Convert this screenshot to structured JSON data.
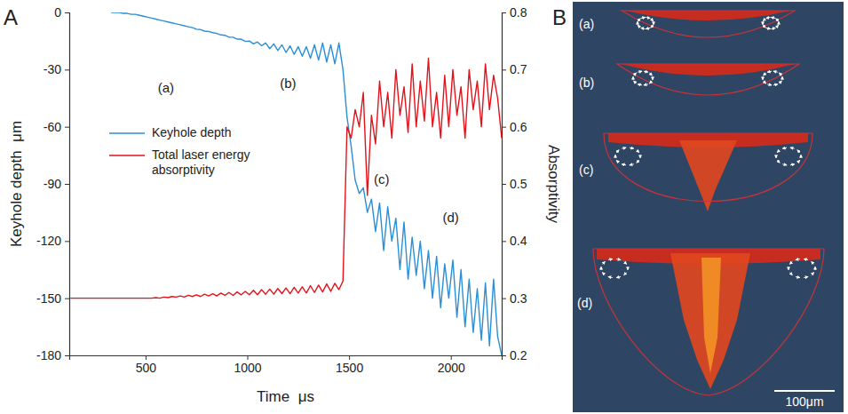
{
  "chart_data": {
    "type": "line",
    "panel_label": "A",
    "x_label": "Time  μs",
    "y_label": "Keyhole depth  μm",
    "y2_label": "Absorptivity",
    "xlim": [
      125,
      2250
    ],
    "xticks": [
      500,
      1000,
      1500,
      2000
    ],
    "ylim": [
      -180,
      0
    ],
    "yticks": [
      0,
      -30,
      -60,
      -90,
      -120,
      -150,
      -180
    ],
    "y2lim": [
      0.2,
      0.8
    ],
    "y2ticks": [
      0.2,
      0.3,
      0.4,
      0.5,
      0.6,
      0.7,
      0.8
    ],
    "grid": false,
    "legend": "left",
    "x": [
      130,
      150,
      170,
      190,
      210,
      230,
      250,
      270,
      290,
      310,
      330,
      350,
      370,
      390,
      410,
      430,
      450,
      470,
      490,
      510,
      530,
      550,
      570,
      590,
      610,
      630,
      650,
      670,
      690,
      710,
      730,
      750,
      770,
      790,
      810,
      830,
      850,
      870,
      890,
      910,
      930,
      950,
      970,
      990,
      1010,
      1030,
      1050,
      1070,
      1090,
      1110,
      1130,
      1150,
      1170,
      1190,
      1210,
      1230,
      1250,
      1270,
      1290,
      1310,
      1330,
      1350,
      1370,
      1390,
      1410,
      1430,
      1450,
      1470,
      1490,
      1510,
      1530,
      1550,
      1570,
      1590,
      1610,
      1630,
      1650,
      1670,
      1690,
      1710,
      1730,
      1750,
      1770,
      1790,
      1810,
      1830,
      1850,
      1870,
      1890,
      1910,
      1930,
      1950,
      1970,
      1990,
      2010,
      2030,
      2050,
      2070,
      2090,
      2110,
      2130,
      2150,
      2170,
      2190,
      2210,
      2230,
      2250
    ],
    "series": [
      {
        "name": "Keyhole depth",
        "color": "#2a8fd6",
        "values": [
          null,
          null,
          null,
          null,
          null,
          null,
          null,
          null,
          null,
          null,
          0,
          0,
          0,
          -0.5,
          -0.5,
          -1,
          -1,
          -1.5,
          -2,
          -2.5,
          -3,
          -3.5,
          -4,
          -4.5,
          -5,
          -5.5,
          -6,
          -6.5,
          -7,
          -7.5,
          -8,
          -8.8,
          -9,
          -9.8,
          -10,
          -10.6,
          -11,
          -11.8,
          -12,
          -13,
          -13,
          -14,
          -14,
          -15.2,
          -15,
          -16.5,
          -15.5,
          -17.5,
          -16,
          -19,
          -16.5,
          -20,
          -17,
          -21,
          -17.5,
          -22,
          -18,
          -23,
          -18,
          -24,
          -17,
          -25,
          -16,
          -26,
          -17,
          -27,
          -16,
          -30,
          -55,
          -70,
          -88,
          -95,
          -92,
          -105,
          -98,
          -115,
          -100,
          -125,
          -102,
          -120,
          -108,
          -135,
          -110,
          -140,
          -118,
          -138,
          -120,
          -145,
          -125,
          -150,
          -128,
          -155,
          -132,
          -150,
          -130,
          -160,
          -135,
          -165,
          -140,
          -168,
          -145,
          -172,
          -142,
          -175,
          -140,
          -170,
          -180
        ]
      },
      {
        "name": "Total laser energy absorptivity",
        "color": "#e3131b",
        "axis": "y2",
        "values": [
          0.3,
          0.3,
          0.3,
          0.3,
          0.3,
          0.3,
          0.3,
          0.3,
          0.3,
          0.3,
          0.3,
          0.3,
          0.3,
          0.3,
          0.3,
          0.3,
          0.3,
          0.3,
          0.3,
          0.3,
          0.3,
          0.301,
          0.3,
          0.302,
          0.301,
          0.303,
          0.302,
          0.304,
          0.302,
          0.305,
          0.303,
          0.306,
          0.303,
          0.307,
          0.304,
          0.308,
          0.304,
          0.309,
          0.305,
          0.31,
          0.305,
          0.311,
          0.306,
          0.312,
          0.306,
          0.314,
          0.306,
          0.315,
          0.307,
          0.316,
          0.307,
          0.317,
          0.308,
          0.318,
          0.308,
          0.319,
          0.309,
          0.32,
          0.309,
          0.322,
          0.31,
          0.323,
          0.311,
          0.325,
          0.312,
          0.326,
          0.315,
          0.33,
          0.6,
          0.58,
          0.63,
          0.6,
          0.66,
          0.48,
          0.62,
          0.57,
          0.68,
          0.6,
          0.66,
          0.58,
          0.7,
          0.62,
          0.67,
          0.59,
          0.71,
          0.6,
          0.68,
          0.61,
          0.72,
          0.6,
          0.66,
          0.58,
          0.69,
          0.6,
          0.7,
          0.62,
          0.67,
          0.58,
          0.7,
          0.63,
          0.68,
          0.6,
          0.71,
          0.63,
          0.69,
          0.65,
          0.58
        ]
      }
    ],
    "annotations": [
      {
        "text": "(a)",
        "x": 600,
        "y": -40
      },
      {
        "text": "(b)",
        "x": 1200,
        "y": -38
      },
      {
        "text": "(c)",
        "x": 1660,
        "y": -88
      },
      {
        "text": "(d)",
        "x": 2000,
        "y": -108
      }
    ]
  },
  "panel_b": {
    "panel_label": "B",
    "labels": [
      "(a)",
      "(b)",
      "(c)",
      "(d)"
    ],
    "scale_bar": "100μm"
  }
}
